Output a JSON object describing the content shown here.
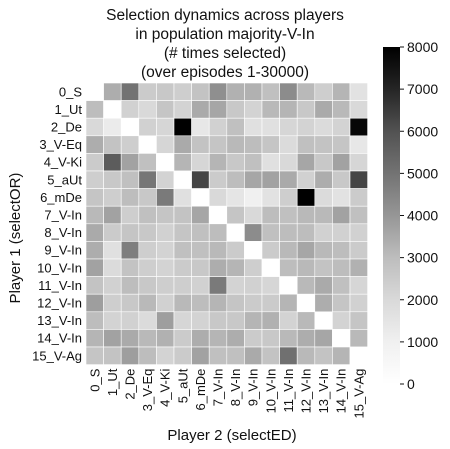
{
  "chart_data": {
    "type": "heatmap",
    "title_lines": [
      "Selection dynamics across players",
      "in population majority-V-In",
      "(# times selected)",
      "(over episodes 1-30000)"
    ],
    "xlabel": "Player 2 (selectED)",
    "ylabel": "Player 1 (selectOR)",
    "categories": [
      "0_S",
      "1_Ut",
      "2_De",
      "3_V-Eq",
      "4_V-Ki",
      "5_aUt",
      "6_mDe",
      "7_V-In",
      "8_V-In",
      "9_V-In",
      "10_V-In",
      "11_V-In",
      "12_V-In",
      "13_V-In",
      "14_V-In",
      "15_V-Ag"
    ],
    "colorbar": {
      "min": 0,
      "max": 8000,
      "ticks": [
        0,
        1000,
        2000,
        3000,
        4000,
        5000,
        6000,
        7000,
        8000
      ]
    },
    "colormap": "Greys",
    "values": [
      [
        0,
        3400,
        5000,
        2500,
        2600,
        2400,
        2800,
        4200,
        3300,
        3300,
        2900,
        4300,
        3100,
        2400,
        3200,
        1600
      ],
      [
        3000,
        0,
        2300,
        2000,
        2700,
        2200,
        3500,
        3600,
        2600,
        2200,
        3100,
        3200,
        2600,
        3500,
        3100,
        2000
      ],
      [
        2000,
        1200,
        0,
        2300,
        2100,
        8000,
        1400,
        2300,
        2900,
        1700,
        1700,
        2100,
        2200,
        1900,
        2200,
        7800
      ],
      [
        3400,
        2800,
        2400,
        0,
        2100,
        3500,
        2800,
        2700,
        3100,
        3000,
        2700,
        1900,
        2900,
        2800,
        2700,
        1400
      ],
      [
        2500,
        5700,
        3700,
        2900,
        0,
        3200,
        2100,
        3200,
        2600,
        2900,
        1700,
        2000,
        3600,
        2600,
        3700,
        2100
      ],
      [
        2400,
        2600,
        2900,
        4900,
        2200,
        0,
        6300,
        2500,
        3000,
        3600,
        3700,
        3500,
        2300,
        3400,
        2600,
        6300
      ],
      [
        2700,
        2400,
        3000,
        2600,
        4800,
        1700,
        0,
        2000,
        1500,
        1000,
        1600,
        2400,
        8000,
        1900,
        1600,
        2500
      ],
      [
        3100,
        3700,
        2400,
        2900,
        2700,
        2800,
        3600,
        0,
        2700,
        2000,
        3000,
        2900,
        3100,
        3100,
        3700,
        2900
      ],
      [
        3500,
        2500,
        2700,
        2600,
        2300,
        2700,
        2900,
        3000,
        0,
        4300,
        2900,
        3000,
        3000,
        2300,
        2300,
        2300
      ],
      [
        3400,
        1700,
        4700,
        2400,
        2200,
        2900,
        2900,
        3100,
        2500,
        0,
        2500,
        3100,
        3600,
        3100,
        3000,
        2500
      ],
      [
        3700,
        1900,
        2800,
        2400,
        2200,
        2500,
        2600,
        3400,
        3200,
        2400,
        0,
        3000,
        3100,
        2800,
        3000,
        3300
      ],
      [
        2800,
        2300,
        3000,
        2600,
        2400,
        2400,
        2300,
        4800,
        2200,
        2300,
        2100,
        0,
        3100,
        3500,
        2900,
        2100
      ],
      [
        3800,
        2400,
        2600,
        3100,
        2300,
        3100,
        3000,
        3200,
        2700,
        2500,
        2500,
        3200,
        0,
        3400,
        2700,
        2300
      ],
      [
        3000,
        2200,
        2300,
        1900,
        3800,
        2100,
        2200,
        2600,
        2600,
        3200,
        3300,
        2200,
        3100,
        0,
        2200,
        2700
      ],
      [
        3200,
        3700,
        3500,
        3100,
        3300,
        2500,
        3400,
        3200,
        3400,
        2500,
        2600,
        3100,
        3400,
        3600,
        0,
        3100
      ],
      [
        2700,
        2800,
        3800,
        3000,
        2200,
        2500,
        3700,
        2900,
        2900,
        3500,
        2800,
        5100,
        3100,
        2800,
        3200,
        0
      ]
    ]
  }
}
